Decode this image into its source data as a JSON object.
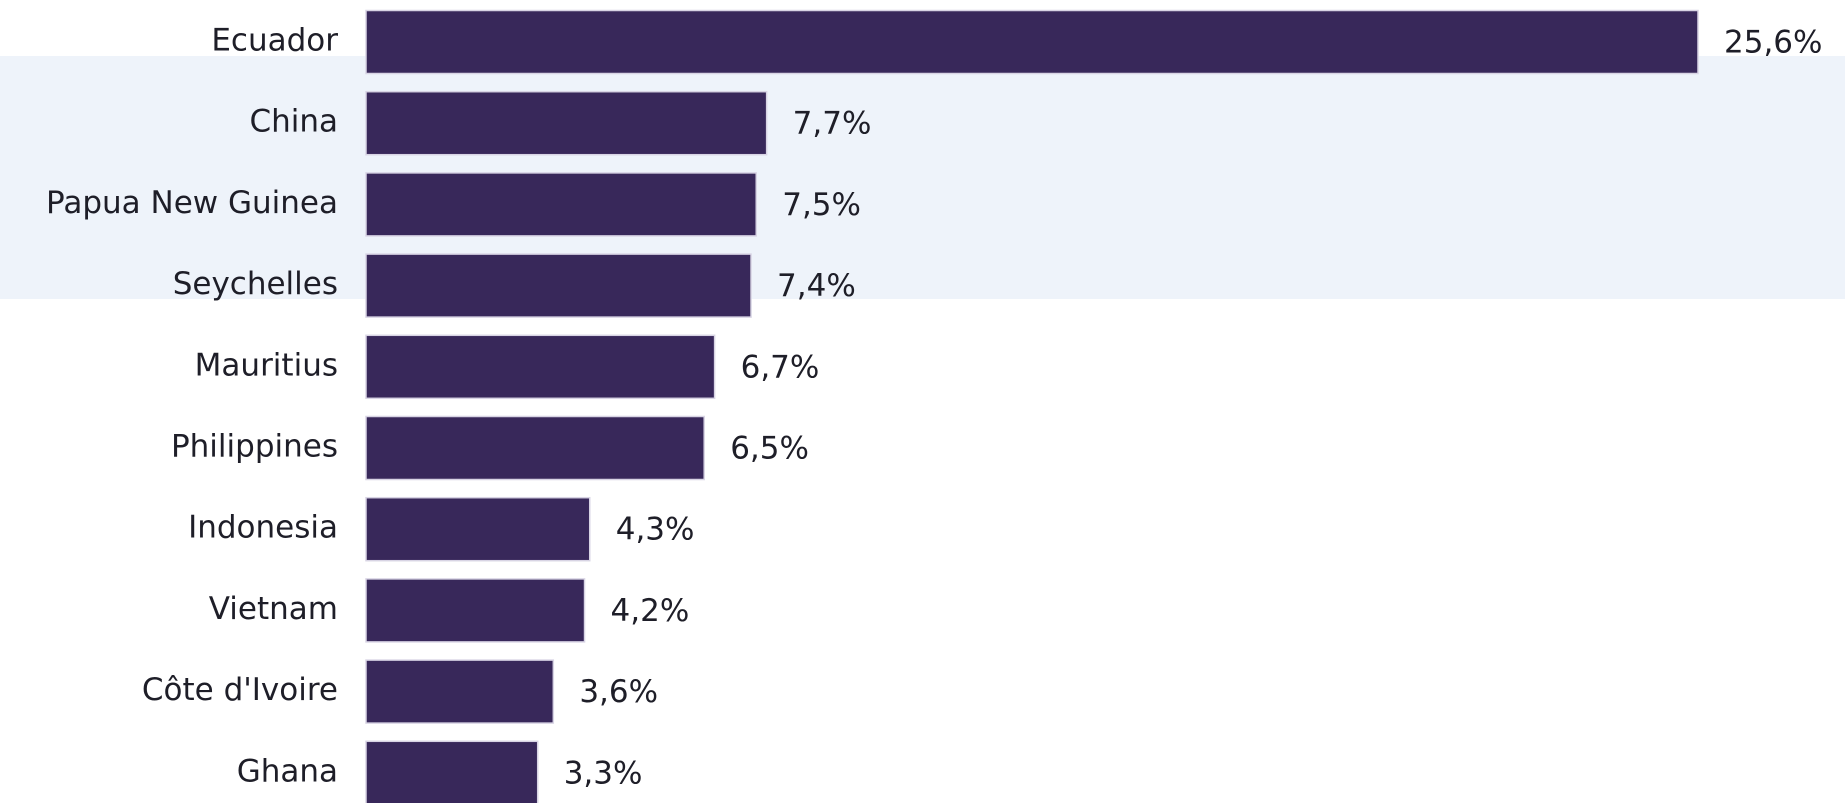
{
  "chart_data": {
    "type": "bar",
    "orientation": "horizontal",
    "color": "#38285a",
    "categories": [
      "Ecuador",
      "China",
      "Papua New Guinea",
      "Seychelles",
      "Mauritius",
      "Philippines",
      "Indonesia",
      "Vietnam",
      "Côte d'Ivoire",
      "Ghana"
    ],
    "values": [
      25.6,
      7.7,
      7.5,
      7.4,
      6.7,
      6.5,
      4.3,
      4.2,
      3.6,
      3.3
    ],
    "value_labels": [
      "25,6%",
      "7,7%",
      "7,5%",
      "7,4%",
      "6,7%",
      "6,5%",
      "4,3%",
      "4,2%",
      "3,6%",
      "3,3%"
    ]
  }
}
